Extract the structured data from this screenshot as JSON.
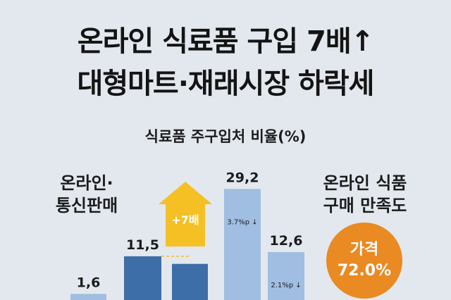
{
  "title_line1": "온라인 식료품 구입 7배↑",
  "title_line2": "대형마트·재래시장 하락세",
  "online_label_line1": "온라인·",
  "online_label_line2": "통신판매",
  "satisfaction_label_line1": "온라인 식품",
  "satisfaction_label_line2": "구매 만족도",
  "badge": {
    "label": "가격",
    "value": "72.0%"
  },
  "colors": {
    "bar_light": "#9fbee1",
    "bar_dark": "#3d6ea8",
    "arrow": "#f5c023",
    "badge": "#e98a22",
    "background": "#e2e8ee"
  },
  "chart_data": {
    "type": "bar",
    "title": "식료품 주구입처 비율(%)",
    "bars": [
      {
        "label": "1,6",
        "value": 1.6,
        "style": "light",
        "note": ""
      },
      {
        "label": "11,5",
        "value": 11.5,
        "style": "dark",
        "note": ""
      },
      {
        "label": "",
        "value": 9.5,
        "style": "dark",
        "note": ""
      },
      {
        "label": "29,2",
        "value": 29.2,
        "style": "light",
        "note": "3.7%p ↓"
      },
      {
        "label": "12,6",
        "value": 12.6,
        "style": "light",
        "note": "2.1%p ↓"
      }
    ],
    "arrow_label": "+7배"
  }
}
